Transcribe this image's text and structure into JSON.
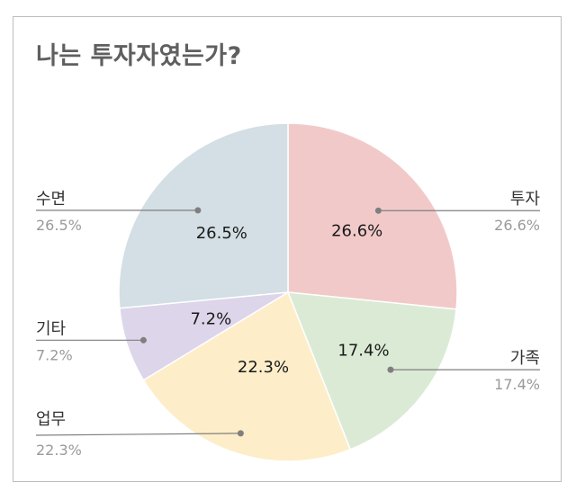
{
  "chart_data": {
    "type": "pie",
    "title": "나는 투자자였는가?",
    "slices": [
      {
        "name": "투자",
        "value": 26.6,
        "label": "26.6%",
        "color": "#f2c9c9"
      },
      {
        "name": "가족",
        "value": 17.4,
        "label": "17.4%",
        "color": "#dbead5"
      },
      {
        "name": "업무",
        "value": 22.3,
        "label": "22.3%",
        "color": "#fdeec9"
      },
      {
        "name": "기타",
        "value": 7.2,
        "label": "7.2%",
        "color": "#ddd5ea"
      },
      {
        "name": "수면",
        "value": 26.5,
        "label": "26.5%",
        "color": "#d3dfe4"
      }
    ],
    "legend": "outside-callouts",
    "start_angle": "12 o'clock",
    "direction": "clockwise"
  }
}
